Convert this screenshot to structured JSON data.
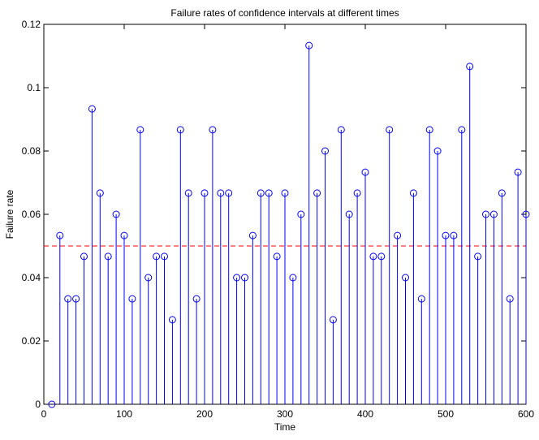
{
  "chart_data": {
    "type": "stem",
    "title": "Failure rates of confidence intervals at different times",
    "xlabel": "Time",
    "ylabel": "Failure rate",
    "xlim": [
      0,
      600
    ],
    "ylim": [
      0,
      0.12
    ],
    "x_ticks": [
      "0",
      "100",
      "200",
      "300",
      "400",
      "500",
      "600"
    ],
    "y_ticks": [
      "0",
      "0.02",
      "0.04",
      "0.06",
      "0.08",
      "0.1",
      "0.12"
    ],
    "grid": false,
    "legend": "none",
    "reference_line": {
      "y": 0.05,
      "color": "#ff0000",
      "style": "dashed"
    },
    "series": [
      {
        "color": "#0000ff",
        "x": [
          10,
          20,
          30,
          40,
          50,
          60,
          70,
          80,
          90,
          100,
          110,
          120,
          130,
          140,
          150,
          160,
          170,
          180,
          190,
          200,
          210,
          220,
          230,
          240,
          250,
          260,
          270,
          280,
          290,
          300,
          310,
          320,
          330,
          340,
          350,
          360,
          370,
          380,
          390,
          400,
          410,
          420,
          430,
          440,
          450,
          460,
          470,
          480,
          490,
          500,
          510,
          520,
          530,
          540,
          550,
          560,
          570,
          580,
          590,
          600
        ],
        "y": [
          0,
          0.0533,
          0.0333,
          0.0333,
          0.0467,
          0.0933,
          0.0667,
          0.0467,
          0.06,
          0.0533,
          0.0333,
          0.0867,
          0.04,
          0.0467,
          0.0467,
          0.0267,
          0.0867,
          0.0667,
          0.0333,
          0.0667,
          0.0867,
          0.0667,
          0.0667,
          0.04,
          0.04,
          0.0533,
          0.0667,
          0.0667,
          0.0467,
          0.0667,
          0.04,
          0.06,
          0.1133,
          0.0667,
          0.08,
          0.0267,
          0.0867,
          0.06,
          0.0667,
          0.0733,
          0.0467,
          0.0467,
          0.0867,
          0.0533,
          0.04,
          0.0667,
          0.0333,
          0.0867,
          0.08,
          0.0533,
          0.0533,
          0.0867,
          0.1067,
          0.0467,
          0.06,
          0.06,
          0.0667,
          0.0333,
          0.0733,
          0.06
        ]
      }
    ]
  }
}
